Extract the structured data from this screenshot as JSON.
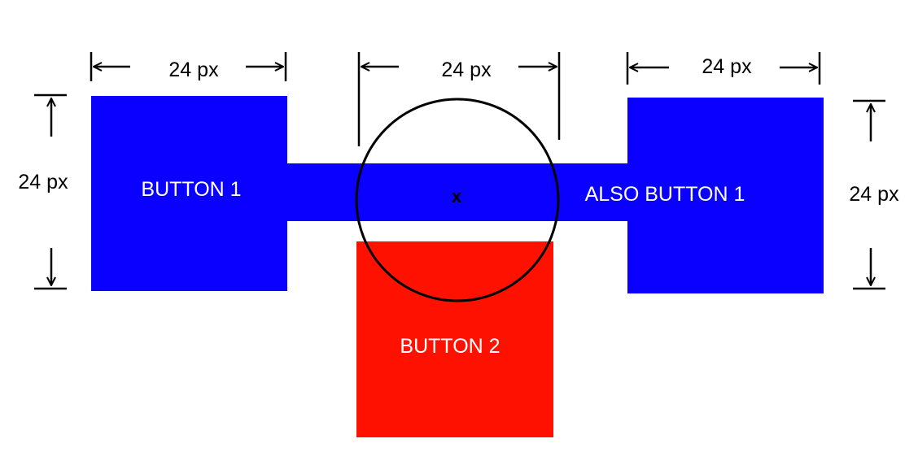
{
  "colors": {
    "button1": "#0a00ff",
    "button2": "#ff1100",
    "ring": "#000000",
    "dimension": "#000000"
  },
  "buttons": {
    "button1_label": "BUTTON 1",
    "also_button1_label": "ALSO BUTTON 1",
    "button2_label": "BUTTON 2"
  },
  "target": {
    "marker_label": "x"
  },
  "dimensions": {
    "button1_width": "24 px",
    "ring_width": "24 px",
    "also_button1_width": "24 px",
    "left_height": "24 px",
    "right_height": "24 px"
  }
}
